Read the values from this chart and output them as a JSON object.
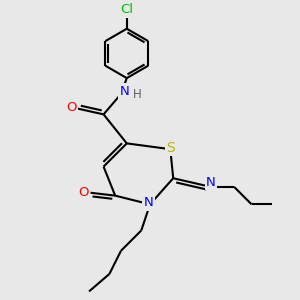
{
  "background_color": "#e8e8e8",
  "atom_colors": {
    "C": "#000000",
    "N": "#0000ff",
    "O": "#ff0000",
    "S": "#b8b800",
    "Cl": "#00bb00",
    "H": "#606060"
  },
  "bond_color": "#000000",
  "bond_width": 1.5
}
